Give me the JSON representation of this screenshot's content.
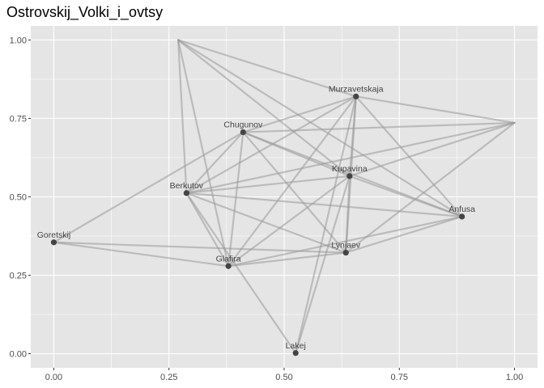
{
  "chart_data": {
    "type": "network",
    "title": "Ostrovskij_Volki_i_ovtsy",
    "xlabel": "",
    "ylabel": "",
    "xlim": [
      -0.05,
      1.05
    ],
    "ylim": [
      -0.045,
      1.045
    ],
    "x_ticks": [
      0.0,
      0.25,
      0.5,
      0.75,
      1.0
    ],
    "x_tick_labels": [
      "0.00",
      "0.25",
      "0.50",
      "0.75",
      "1.00"
    ],
    "y_ticks": [
      0.0,
      0.25,
      0.5,
      0.75,
      1.0
    ],
    "y_tick_labels": [
      "0.00",
      "0.25",
      "0.50",
      "0.75",
      "1.00"
    ],
    "grid": true,
    "colors": {
      "panel": "#e5e5e5",
      "grid": "#ffffff",
      "edge": "#999999",
      "node": "#444444"
    },
    "nodes": [
      {
        "id": "Murzavetskaja",
        "label": "Murzavetskaja",
        "x": 0.656,
        "y": 0.82
      },
      {
        "id": "Chugunov",
        "label": "Chugunov",
        "x": 0.411,
        "y": 0.706
      },
      {
        "id": "Kupavina",
        "label": "Kupavina",
        "x": 0.642,
        "y": 0.566
      },
      {
        "id": "Berkutov",
        "label": "Berkutov",
        "x": 0.288,
        "y": 0.512
      },
      {
        "id": "Anfusa",
        "label": "Anfusa",
        "x": 0.886,
        "y": 0.437
      },
      {
        "id": "Goretskij",
        "label": "Goretskij",
        "x": 0.0,
        "y": 0.355
      },
      {
        "id": "Lynjaev",
        "label": "Lynjaev",
        "x": 0.634,
        "y": 0.322
      },
      {
        "id": "Glafira",
        "label": "Glafira",
        "x": 0.379,
        "y": 0.279
      },
      {
        "id": "Lakej",
        "label": "Lakej",
        "x": 0.525,
        "y": 0.002
      },
      {
        "id": "unlabeled_a",
        "label": "",
        "x": 0.27,
        "y": 1.0
      },
      {
        "id": "unlabeled_b",
        "label": "",
        "x": 1.0,
        "y": 0.736
      }
    ],
    "edges": [
      [
        "unlabeled_a",
        "Murzavetskaja"
      ],
      [
        "unlabeled_a",
        "Berkutov"
      ],
      [
        "unlabeled_a",
        "Kupavina"
      ],
      [
        "unlabeled_a",
        "Anfusa"
      ],
      [
        "unlabeled_a",
        "Glafira"
      ],
      [
        "Murzavetskaja",
        "Chugunov"
      ],
      [
        "Murzavetskaja",
        "Berkutov"
      ],
      [
        "Murzavetskaja",
        "Kupavina"
      ],
      [
        "Murzavetskaja",
        "Anfusa"
      ],
      [
        "Murzavetskaja",
        "Glafira"
      ],
      [
        "Murzavetskaja",
        "Lynjaev"
      ],
      [
        "Murzavetskaja",
        "Lakej"
      ],
      [
        "Chugunov",
        "unlabeled_b"
      ],
      [
        "Chugunov",
        "Berkutov"
      ],
      [
        "Chugunov",
        "Kupavina"
      ],
      [
        "Chugunov",
        "Anfusa"
      ],
      [
        "Chugunov",
        "Glafira"
      ],
      [
        "Chugunov",
        "Lynjaev"
      ],
      [
        "unlabeled_b",
        "Murzavetskaja"
      ],
      [
        "unlabeled_b",
        "Kupavina"
      ],
      [
        "unlabeled_b",
        "Berkutov"
      ],
      [
        "unlabeled_b",
        "Lynjaev"
      ],
      [
        "Berkutov",
        "Kupavina"
      ],
      [
        "Berkutov",
        "Anfusa"
      ],
      [
        "Berkutov",
        "Glafira"
      ],
      [
        "Berkutov",
        "Lynjaev"
      ],
      [
        "Berkutov",
        "Lakej"
      ],
      [
        "Goretskij",
        "Chugunov"
      ],
      [
        "Goretskij",
        "Glafira"
      ],
      [
        "Goretskij",
        "Lynjaev"
      ],
      [
        "Kupavina",
        "Anfusa"
      ],
      [
        "Kupavina",
        "Glafira"
      ],
      [
        "Kupavina",
        "Lynjaev"
      ],
      [
        "Kupavina",
        "Lakej"
      ],
      [
        "Anfusa",
        "Glafira"
      ],
      [
        "Anfusa",
        "Lynjaev"
      ],
      [
        "Lynjaev",
        "Glafira"
      ]
    ]
  }
}
